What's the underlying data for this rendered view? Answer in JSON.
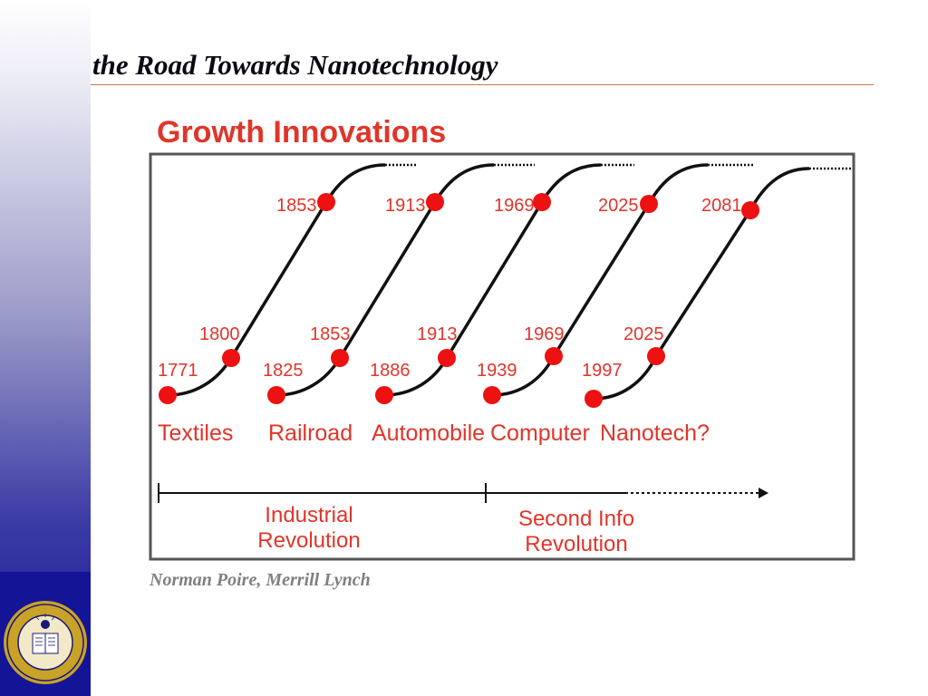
{
  "slide": {
    "title": "the Road Towards Nanotechnology",
    "attribution": "Norman Poire, Merrill Lynch"
  },
  "diagram": {
    "heading": "Growth Innovations",
    "colors": {
      "heading": "#e0352a",
      "dot": "#ee1111",
      "curve": "#111111",
      "label": "#e0352a"
    },
    "waves": [
      {
        "name": "Textiles",
        "start": "1771",
        "mid": "1800",
        "top": "1853"
      },
      {
        "name": "Railroad",
        "start": "1825",
        "mid": "1853",
        "top": "1913"
      },
      {
        "name": "Automobile",
        "start": "1886",
        "mid": "1913",
        "top": "1969"
      },
      {
        "name": "Computer",
        "start": "1939",
        "mid": "1969",
        "top": "2025"
      },
      {
        "name": "Nanotech?",
        "start": "1997",
        "mid": "2025",
        "top": "2081"
      }
    ],
    "eras": [
      {
        "line1": "Industrial",
        "line2": "Revolution"
      },
      {
        "line1": "Second Info",
        "line2": "Revolution"
      }
    ]
  },
  "seal": {
    "text": "THE UNIVERSITY OF CALIFORNIA",
    "year": "1868",
    "motto": "LET THERE BE LIGHT"
  }
}
